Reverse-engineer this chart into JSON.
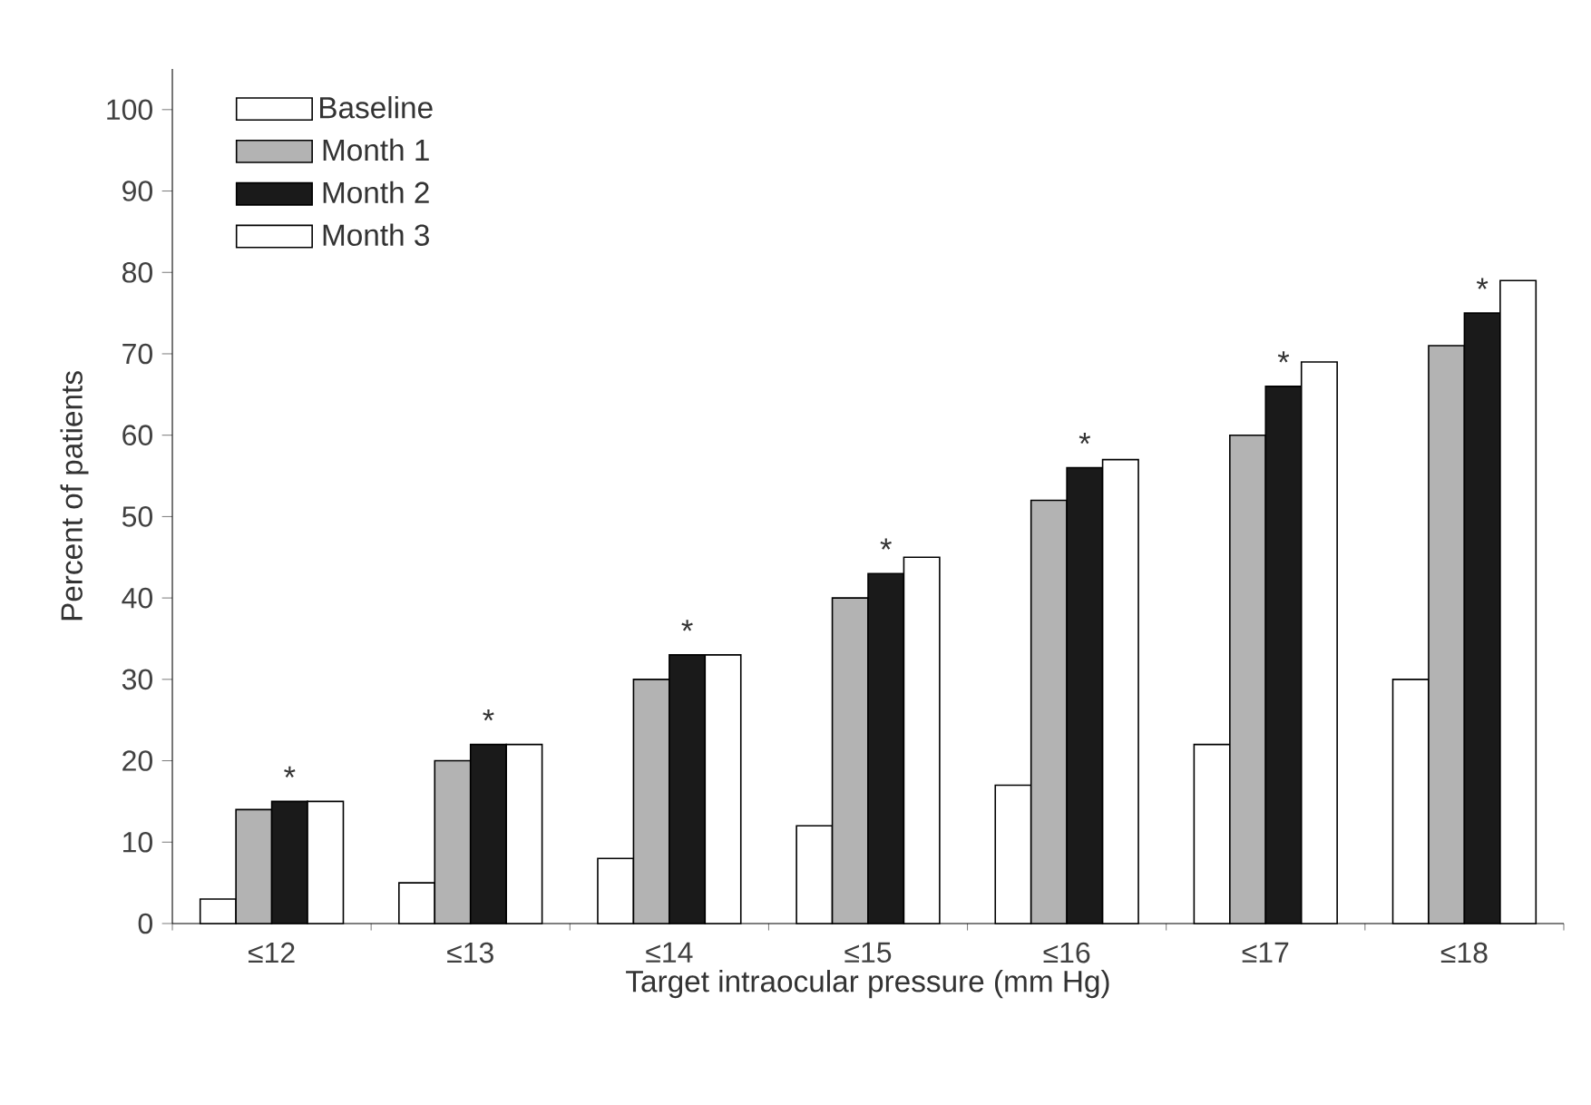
{
  "chart_data": {
    "type": "bar",
    "xlabel": "Target intraocular pressure (mm Hg)",
    "ylabel": "Percent of patients",
    "categories": [
      "≤12",
      "≤13",
      "≤14",
      "≤15",
      "≤16",
      "≤17",
      "≤18"
    ],
    "series": [
      {
        "name": "Baseline",
        "color": "#ffffff",
        "values": [
          3,
          5,
          8,
          12,
          17,
          22,
          30
        ]
      },
      {
        "name": "Month 1",
        "color": "#b3b3b3",
        "values": [
          14,
          20,
          30,
          40,
          52,
          60,
          71
        ]
      },
      {
        "name": "Month 2",
        "color": "#1a1a1a",
        "values": [
          15,
          22,
          33,
          43,
          56,
          66,
          75
        ]
      },
      {
        "name": "Month 3",
        "color": "#ffffff",
        "values": [
          15,
          22,
          33,
          45,
          57,
          69,
          79
        ]
      }
    ],
    "ylim": [
      0,
      105
    ],
    "yticks": [
      0,
      10,
      20,
      30,
      40,
      50,
      60,
      70,
      80,
      90,
      100
    ],
    "legend": "top left",
    "annotations": [
      {
        "text": "*",
        "x": "≤12",
        "y": 15
      },
      {
        "text": "*",
        "x": "≤13",
        "y": 22
      },
      {
        "text": "*",
        "x": "≤14",
        "y": 33
      },
      {
        "text": "*",
        "x": "≤15",
        "y": 43
      },
      {
        "text": "*",
        "x": "≤16",
        "y": 56
      },
      {
        "text": "*",
        "x": "≤17",
        "y": 66
      },
      {
        "text": "*",
        "x": "≤18",
        "y": 75
      }
    ]
  }
}
